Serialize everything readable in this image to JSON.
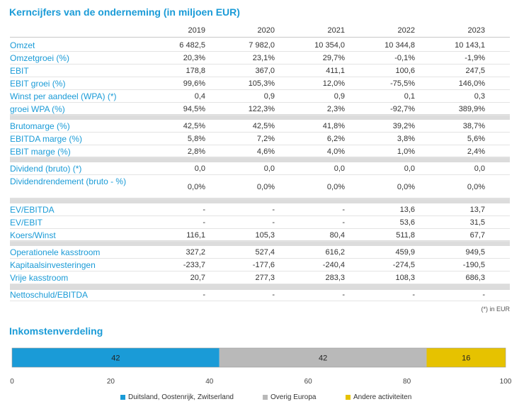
{
  "title": "Kerncijfers van de onderneming (in miljoen EUR)",
  "years": [
    "2019",
    "2020",
    "2021",
    "2022",
    "2023"
  ],
  "rows": [
    {
      "label": "Omzet",
      "values": [
        "6 482,5",
        "7 982,0",
        "10 354,0",
        "10 344,8",
        "10 143,1"
      ]
    },
    {
      "label": "Omzetgroei (%)",
      "values": [
        "20,3%",
        "23,1%",
        "29,7%",
        "-0,1%",
        "-1,9%"
      ]
    },
    {
      "label": "EBIT",
      "values": [
        "178,8",
        "367,0",
        "411,1",
        "100,6",
        "247,5"
      ]
    },
    {
      "label": "EBIT groei (%)",
      "values": [
        "99,6%",
        "105,3%",
        "12,0%",
        "-75,5%",
        "146,0%"
      ]
    },
    {
      "label": "Winst per aandeel (WPA) (*)",
      "values": [
        "0,4",
        "0,9",
        "0,9",
        "0,1",
        "0,3"
      ]
    },
    {
      "label": "groei WPA (%)",
      "values": [
        "94,5%",
        "122,3%",
        "2,3%",
        "-92,7%",
        "389,9%"
      ]
    },
    {
      "label": "Brutomarge (%)",
      "values": [
        "42,5%",
        "42,5%",
        "41,8%",
        "39,2%",
        "38,7%"
      ]
    },
    {
      "label": "EBITDA marge (%)",
      "values": [
        "5,8%",
        "7,2%",
        "6,2%",
        "3,8%",
        "5,6%"
      ]
    },
    {
      "label": "EBIT marge (%)",
      "values": [
        "2,8%",
        "4,6%",
        "4,0%",
        "1,0%",
        "2,4%"
      ]
    },
    {
      "label": "Dividend (bruto) (*)",
      "values": [
        "0,0",
        "0,0",
        "0,0",
        "0,0",
        "0,0"
      ]
    },
    {
      "label": "Dividendrendement (bruto - %)",
      "values": [
        "0,0%",
        "0,0%",
        "0,0%",
        "0,0%",
        "0,0%"
      ]
    },
    {
      "label": "EV/EBITDA",
      "values": [
        "-",
        "-",
        "-",
        "13,6",
        "13,7"
      ]
    },
    {
      "label": "EV/EBIT",
      "values": [
        "-",
        "-",
        "-",
        "53,6",
        "31,5"
      ]
    },
    {
      "label": "Koers/Winst",
      "values": [
        "116,1",
        "105,3",
        "80,4",
        "511,8",
        "67,7"
      ]
    },
    {
      "label": "Operationele kasstroom",
      "values": [
        "327,2",
        "527,4",
        "616,2",
        "459,9",
        "949,5"
      ]
    },
    {
      "label": "Kapitaalsinvesteringen",
      "values": [
        "-233,7",
        "-177,6",
        "-240,4",
        "-274,5",
        "-190,5"
      ]
    },
    {
      "label": "Vrije kasstroom",
      "values": [
        "20,7",
        "277,3",
        "283,3",
        "108,3",
        "686,3"
      ]
    },
    {
      "label": "Nettoschuld/EBITDA",
      "values": [
        "-",
        "-",
        "-",
        "-",
        "-"
      ]
    }
  ],
  "note": "(*) in EUR",
  "section_title": "Inkomstenverdeling",
  "chart_data": {
    "type": "bar",
    "orientation": "horizontal-stacked",
    "series": [
      {
        "name": "Duitsland, Oostenrijk, Zwitserland",
        "value": 42,
        "color": "#1a9bd7"
      },
      {
        "name": "Overig Europa",
        "value": 42,
        "color": "#b9b9b9"
      },
      {
        "name": "Andere activiteiten",
        "value": 16,
        "color": "#e6c200"
      }
    ],
    "xlim": [
      0,
      100
    ],
    "xticks": [
      "0",
      "20",
      "40",
      "60",
      "80",
      "100"
    ],
    "legend": "bottom"
  }
}
